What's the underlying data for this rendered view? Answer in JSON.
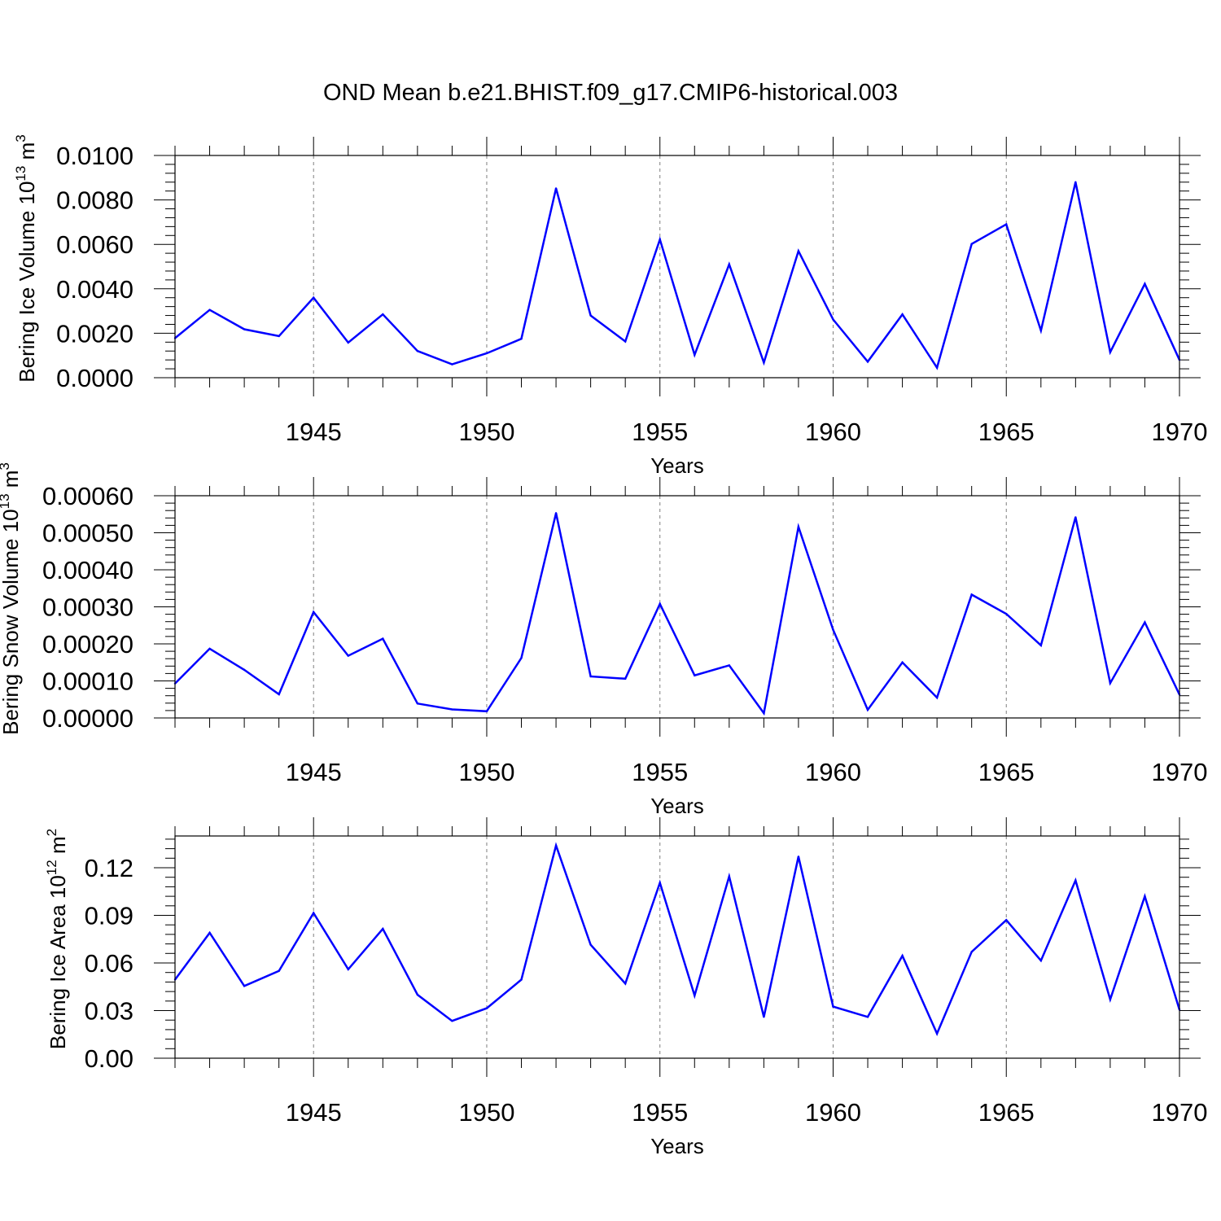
{
  "title": "OND Mean b.e21.BHIST.f09_g17.CMIP6-historical.003",
  "line_color": "#0000ff",
  "chart_data": [
    {
      "type": "line",
      "ylabel": "Bering Ice Volume 10",
      "ylabel_exp": "13",
      "ylabel_unit": " m",
      "ylabel_unit_exp": "3",
      "xlabel": "Years",
      "xlim": [
        1941,
        1970
      ],
      "ylim": [
        0,
        0.01
      ],
      "yticks": [
        0,
        0.002,
        0.004,
        0.006,
        0.008,
        0.01
      ],
      "ytick_labels": [
        "0.0000",
        "0.0020",
        "0.0040",
        "0.0060",
        "0.0080",
        "0.0100"
      ],
      "xticks": [
        1945,
        1950,
        1955,
        1960,
        1965,
        1970
      ],
      "xtick_labels": [
        "1945",
        "1950",
        "1955",
        "1960",
        "1965",
        "1970"
      ],
      "x": [
        1941,
        1942,
        1943,
        1944,
        1945,
        1946,
        1947,
        1948,
        1949,
        1950,
        1951,
        1952,
        1953,
        1954,
        1955,
        1956,
        1957,
        1958,
        1959,
        1960,
        1961,
        1962,
        1963,
        1964,
        1965,
        1966,
        1967,
        1968,
        1969,
        1970
      ],
      "values": [
        0.00178,
        0.00305,
        0.00218,
        0.00187,
        0.0036,
        0.00158,
        0.00285,
        0.0012,
        0.0006,
        0.0011,
        0.00175,
        0.00852,
        0.0028,
        0.00163,
        0.00622,
        0.00103,
        0.0051,
        0.00068,
        0.0057,
        0.00262,
        0.00072,
        0.00285,
        0.00045,
        0.00602,
        0.0069,
        0.00212,
        0.0088,
        0.00115,
        0.00422,
        0.0008
      ]
    },
    {
      "type": "line",
      "ylabel": "Bering Snow Volume 10",
      "ylabel_exp": "13",
      "ylabel_unit": " m",
      "ylabel_unit_exp": "3",
      "xlabel": "Years",
      "xlim": [
        1941,
        1970
      ],
      "ylim": [
        0,
        0.0006
      ],
      "yticks": [
        0,
        0.0001,
        0.0002,
        0.0003,
        0.0004,
        0.0005,
        0.0006
      ],
      "ytick_labels": [
        "0.00000",
        "0.00010",
        "0.00020",
        "0.00030",
        "0.00040",
        "0.00050",
        "0.00060"
      ],
      "xticks": [
        1945,
        1950,
        1955,
        1960,
        1965,
        1970
      ],
      "xtick_labels": [
        "1945",
        "1950",
        "1955",
        "1960",
        "1965",
        "1970"
      ],
      "x": [
        1941,
        1942,
        1943,
        1944,
        1945,
        1946,
        1947,
        1948,
        1949,
        1950,
        1951,
        1952,
        1953,
        1954,
        1955,
        1956,
        1957,
        1958,
        1959,
        1960,
        1961,
        1962,
        1963,
        1964,
        1965,
        1966,
        1967,
        1968,
        1969,
        1970
      ],
      "values": [
        9.3e-05,
        0.000187,
        0.00013,
        6.4e-05,
        0.000286,
        0.000168,
        0.000214,
        3.9e-05,
        2.3e-05,
        1.8e-05,
        0.000162,
        0.000553,
        0.000112,
        0.000106,
        0.000308,
        0.000115,
        0.000142,
        1.3e-05,
        0.000516,
        0.000238,
        2.2e-05,
        0.00015,
        5.5e-05,
        0.000333,
        0.000281,
        0.000196,
        0.000542,
        9.4e-05,
        0.000258,
        6.3e-05
      ]
    },
    {
      "type": "line",
      "ylabel": "Bering Ice Area 10",
      "ylabel_exp": "12",
      "ylabel_unit": " m",
      "ylabel_unit_exp": "2",
      "xlabel": "Years",
      "xlim": [
        1941,
        1970
      ],
      "ylim": [
        0,
        0.14
      ],
      "yticks": [
        0,
        0.03,
        0.06,
        0.09,
        0.12
      ],
      "ytick_labels": [
        "0.00",
        "0.03",
        "0.06",
        "0.09",
        "0.12"
      ],
      "xticks": [
        1945,
        1950,
        1955,
        1960,
        1965,
        1970
      ],
      "xtick_labels": [
        "1945",
        "1950",
        "1955",
        "1960",
        "1965",
        "1970"
      ],
      "x": [
        1941,
        1942,
        1943,
        1944,
        1945,
        1946,
        1947,
        1948,
        1949,
        1950,
        1951,
        1952,
        1953,
        1954,
        1955,
        1956,
        1957,
        1958,
        1959,
        1960,
        1961,
        1962,
        1963,
        1964,
        1965,
        1966,
        1967,
        1968,
        1969,
        1970
      ],
      "values": [
        0.0495,
        0.079,
        0.0455,
        0.055,
        0.0915,
        0.056,
        0.0815,
        0.04,
        0.0235,
        0.0315,
        0.0495,
        0.134,
        0.0715,
        0.047,
        0.1105,
        0.0395,
        0.1145,
        0.026,
        0.127,
        0.0325,
        0.026,
        0.0645,
        0.0155,
        0.067,
        0.087,
        0.0615,
        0.112,
        0.037,
        0.102,
        0.0305
      ]
    }
  ]
}
